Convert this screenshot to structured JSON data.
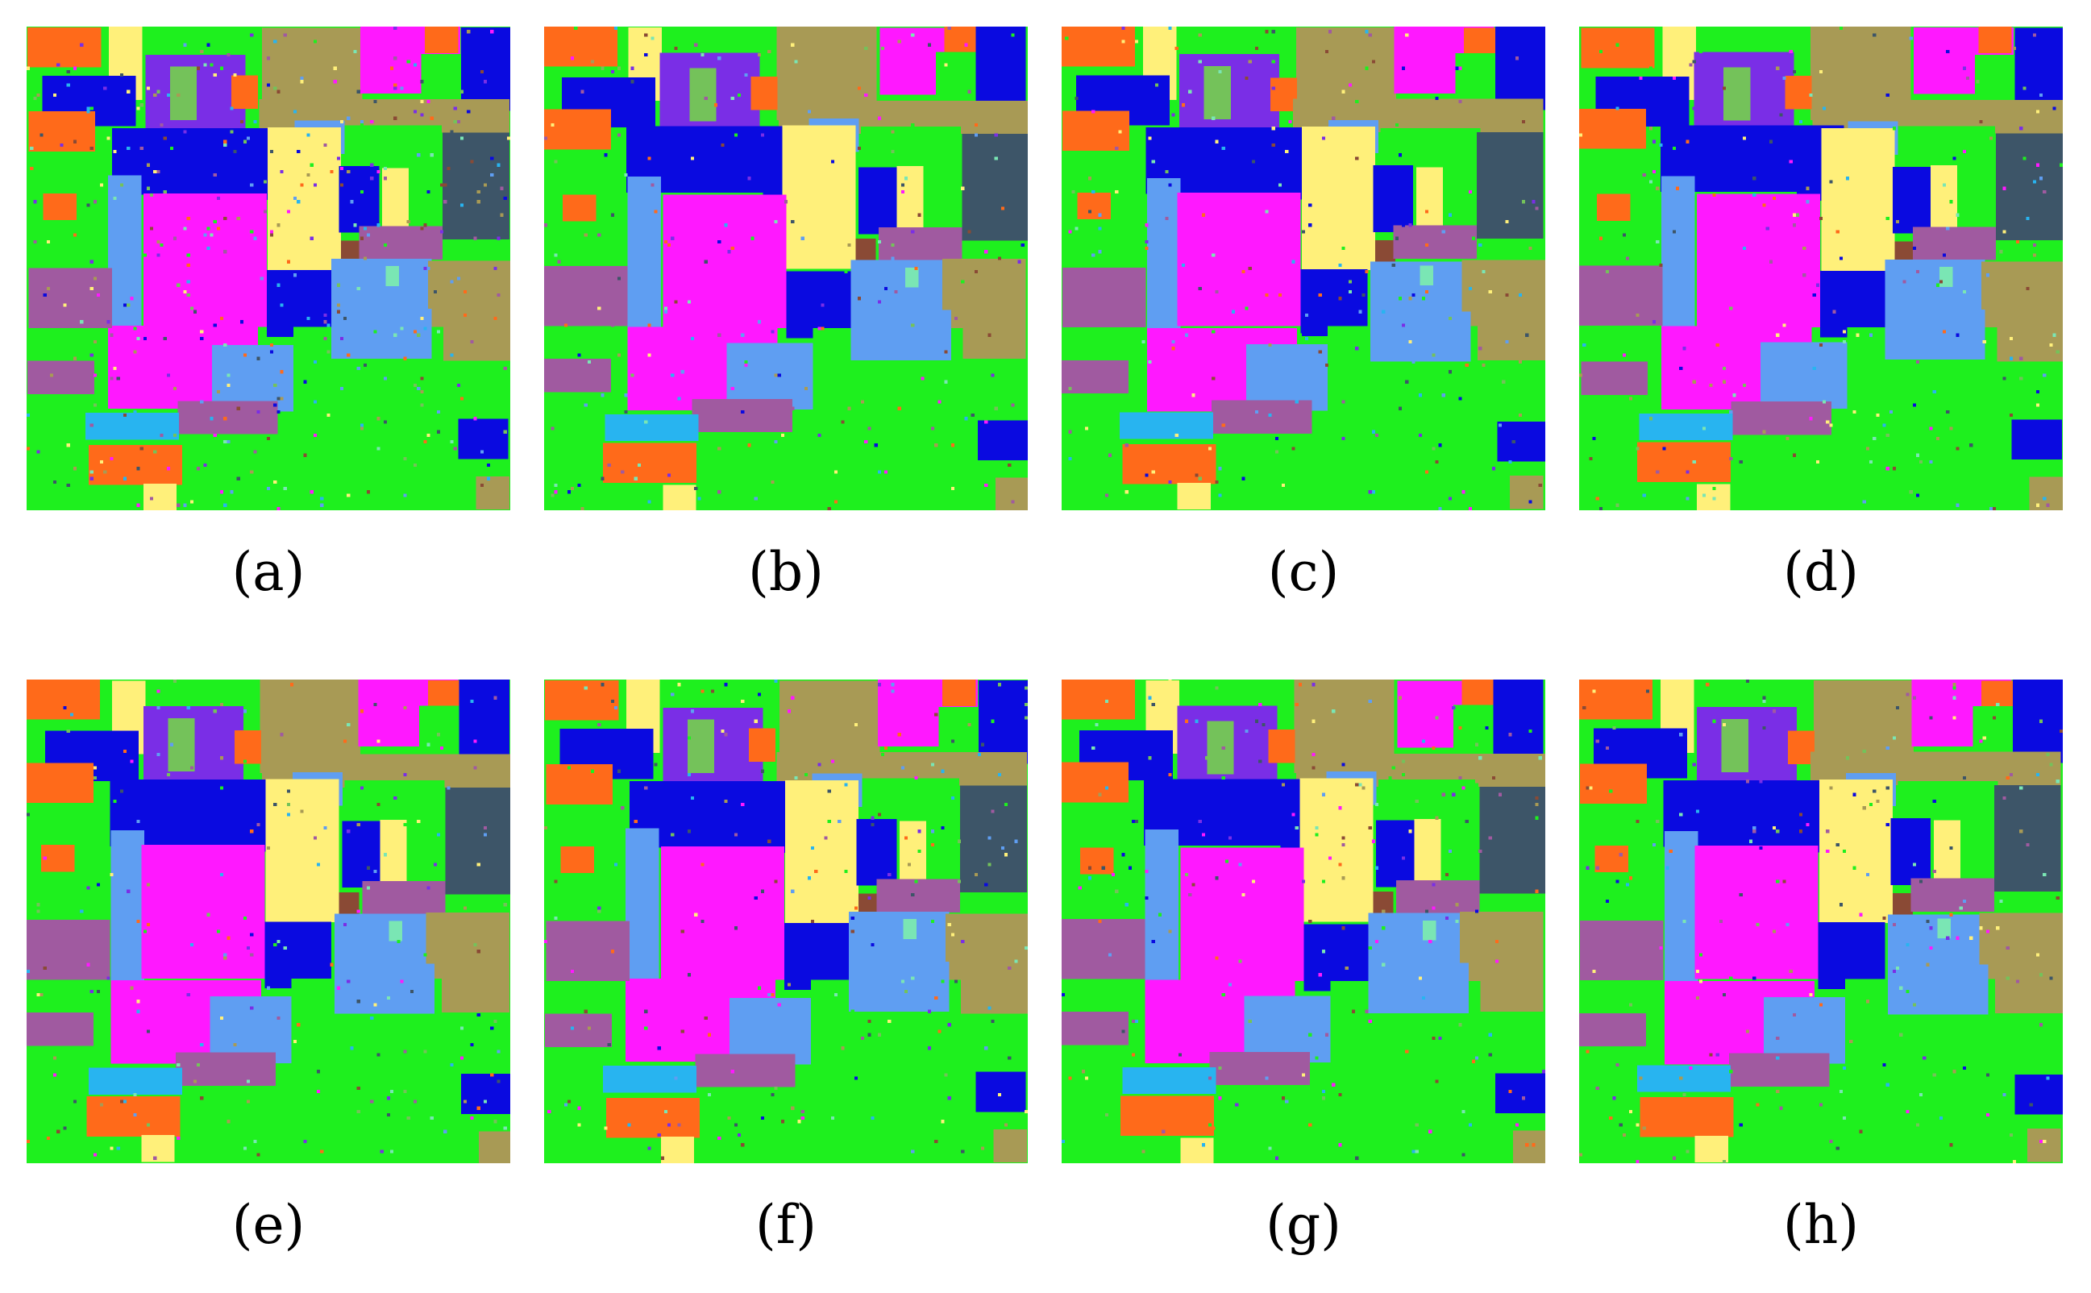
{
  "figure": {
    "panels": [
      {
        "id": "a",
        "caption": "(a)"
      },
      {
        "id": "b",
        "caption": "(b)"
      },
      {
        "id": "c",
        "caption": "(c)"
      },
      {
        "id": "d",
        "caption": "(d)"
      },
      {
        "id": "e",
        "caption": "(e)"
      },
      {
        "id": "f",
        "caption": "(f)"
      },
      {
        "id": "g",
        "caption": "(g)"
      },
      {
        "id": "h",
        "caption": "(h)"
      }
    ],
    "class_colors": {
      "orange": "#ff6a1a",
      "blue": "#0a0ae0",
      "purple": "#7a2ee6",
      "khaki": "#a89a55",
      "magenta": "#ff18ff",
      "green": "#1ef01e",
      "yellow": "#fff07a",
      "light_blue": "#5f9ef2",
      "slate": "#3d5568",
      "mauve": "#a05aa0",
      "brown": "#8a4a35",
      "cyan": "#28b4f0",
      "olive_green": "#74c25a",
      "mint": "#7ae6b4"
    }
  }
}
